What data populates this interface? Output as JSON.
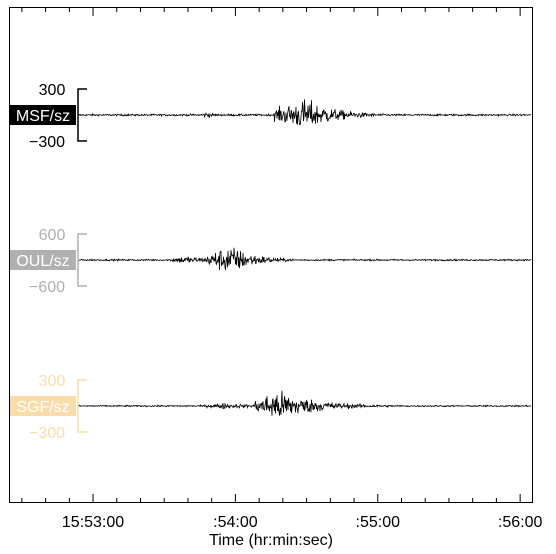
{
  "chart_data": {
    "type": "line",
    "xlabel": "Time (hr:min:sec)",
    "x_ticks": [
      {
        "time": "15:53:00",
        "label": "15:53:00"
      },
      {
        "time": "15:54:00",
        "label": ":54:00"
      },
      {
        "time": "15:55:00",
        "label": ":55:00"
      },
      {
        "time": "15:56:00",
        "label": ":56:00"
      }
    ],
    "xlim": [
      "15:52:25",
      "15:56:05"
    ],
    "minor_tick_interval_seconds": 10,
    "series": [
      {
        "name": "MSF/sz",
        "label_bg": "#000000",
        "label_fg": "#ffffff",
        "scale_color": "#000000",
        "scale_top": "300",
        "scale_bottom": "−300",
        "scale_max": 300,
        "noise": 18,
        "envelope": [
          {
            "start": "15:53:45",
            "peak": "15:53:48",
            "end": "15:54:00",
            "amp": 55
          },
          {
            "start": "15:54:16",
            "peak": "15:54:30",
            "end": "15:55:10",
            "amp": 320
          }
        ]
      },
      {
        "name": "OUL/sz",
        "label_bg": "#b0b0b0",
        "label_fg": "#ffffff",
        "scale_color": "#b0b0b0",
        "scale_top": "600",
        "scale_bottom": "−600",
        "scale_max": 600,
        "noise": 30,
        "envelope": [
          {
            "start": "15:53:32",
            "peak": "15:53:38",
            "end": "15:54:30",
            "amp": 150
          },
          {
            "start": "15:53:48",
            "peak": "15:53:58",
            "end": "15:54:30",
            "amp": 600
          }
        ]
      },
      {
        "name": "SGF/sz",
        "label_bg": "#fadcaa",
        "label_fg": "#ffffff",
        "scale_color": "#fadcaa",
        "scale_top": "300",
        "scale_bottom": "−300",
        "scale_max": 300,
        "noise": 14,
        "envelope": [
          {
            "start": "15:53:47",
            "peak": "15:53:55",
            "end": "15:54:40",
            "amp": 60
          },
          {
            "start": "15:54:08",
            "peak": "15:54:18",
            "end": "15:55:10",
            "amp": 320
          }
        ]
      }
    ]
  }
}
